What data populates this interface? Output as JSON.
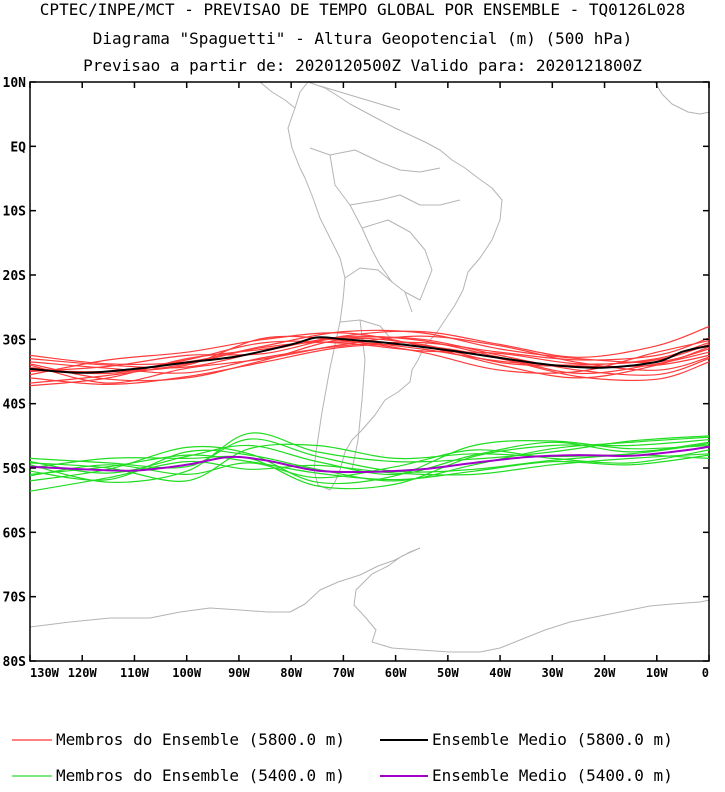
{
  "header": {
    "line1": "CPTEC/INPE/MCT - PREVISAO DE TEMPO GLOBAL POR ENSEMBLE - TQ0126L028",
    "line2": "Diagrama \"Spaguetti\" - Altura Geopotencial (m) (500 hPa)",
    "line3": "Previsao a partir de: 2020120500Z  Valido para: 2020121800Z"
  },
  "axes": {
    "lat_labels": [
      "10N",
      "EQ",
      "10S",
      "20S",
      "30S",
      "40S",
      "50S",
      "60S",
      "70S",
      "80S"
    ],
    "lat_values": [
      10,
      0,
      -10,
      -20,
      -30,
      -40,
      -50,
      -60,
      -70,
      -80
    ],
    "lon_labels": [
      "130W",
      "120W",
      "110W",
      "100W",
      "90W",
      "80W",
      "70W",
      "60W",
      "50W",
      "40W",
      "30W",
      "20W",
      "10W",
      "0"
    ],
    "lon_values": [
      -130,
      -120,
      -110,
      -100,
      -90,
      -80,
      -70,
      -60,
      -50,
      -40,
      -30,
      -20,
      -10,
      0
    ],
    "lon_range": [
      -130,
      0
    ],
    "lat_range": [
      -80,
      10
    ]
  },
  "map_data": {
    "contour_5800": {
      "mean": [
        [
          -130,
          -34.6
        ],
        [
          -120,
          -35.2
        ],
        [
          -110,
          -34.6
        ],
        [
          -100,
          -33.6
        ],
        [
          -90,
          -32.6
        ],
        [
          -80,
          -30.8
        ],
        [
          -75,
          -29.7
        ],
        [
          -70,
          -30.0
        ],
        [
          -65,
          -30.3
        ],
        [
          -60,
          -30.7
        ],
        [
          -50,
          -31.7
        ],
        [
          -40,
          -32.9
        ],
        [
          -30,
          -34.0
        ],
        [
          -20,
          -34.4
        ],
        [
          -10,
          -33.5
        ],
        [
          -5,
          -31.9
        ],
        [
          0,
          -31.0
        ]
      ],
      "members": [
        [
          [
            -130,
            -33.0
          ],
          [
            -115,
            -34.0
          ],
          [
            -100,
            -34.3
          ],
          [
            -85,
            -31.8
          ],
          [
            -70,
            -29.6
          ],
          [
            -55,
            -30.2
          ],
          [
            -40,
            -32.8
          ],
          [
            -25,
            -35.3
          ],
          [
            -10,
            -33.8
          ],
          [
            0,
            -32.0
          ]
        ],
        [
          [
            -130,
            -36.8
          ],
          [
            -115,
            -35.6
          ],
          [
            -100,
            -33.8
          ],
          [
            -85,
            -31.2
          ],
          [
            -70,
            -30.4
          ],
          [
            -55,
            -31.5
          ],
          [
            -40,
            -33.4
          ],
          [
            -25,
            -34.0
          ],
          [
            -10,
            -33.0
          ],
          [
            0,
            -30.5
          ]
        ],
        [
          [
            -130,
            -34.0
          ],
          [
            -115,
            -36.8
          ],
          [
            -100,
            -34.5
          ],
          [
            -85,
            -33.0
          ],
          [
            -70,
            -30.8
          ],
          [
            -55,
            -29.5
          ],
          [
            -40,
            -31.0
          ],
          [
            -25,
            -33.6
          ],
          [
            -10,
            -34.8
          ],
          [
            0,
            -32.8
          ]
        ],
        [
          [
            -130,
            -35.5
          ],
          [
            -115,
            -33.2
          ],
          [
            -100,
            -32.0
          ],
          [
            -85,
            -30.0
          ],
          [
            -70,
            -29.0
          ],
          [
            -55,
            -31.0
          ],
          [
            -40,
            -34.0
          ],
          [
            -25,
            -36.0
          ],
          [
            -10,
            -34.0
          ],
          [
            0,
            -31.2
          ]
        ],
        [
          [
            -130,
            -33.5
          ],
          [
            -115,
            -34.5
          ],
          [
            -100,
            -35.2
          ],
          [
            -85,
            -32.8
          ],
          [
            -70,
            -31.0
          ],
          [
            -55,
            -30.5
          ],
          [
            -40,
            -32.0
          ],
          [
            -25,
            -33.2
          ],
          [
            -10,
            -32.5
          ],
          [
            0,
            -29.8
          ]
        ],
        [
          [
            -130,
            -37.2
          ],
          [
            -115,
            -36.0
          ],
          [
            -100,
            -33.0
          ],
          [
            -85,
            -31.5
          ],
          [
            -70,
            -29.8
          ],
          [
            -55,
            -30.0
          ],
          [
            -40,
            -32.5
          ],
          [
            -25,
            -34.8
          ],
          [
            -10,
            -35.5
          ],
          [
            0,
            -33.0
          ]
        ],
        [
          [
            -130,
            -34.8
          ],
          [
            -115,
            -35.0
          ],
          [
            -100,
            -34.0
          ],
          [
            -85,
            -29.8
          ],
          [
            -70,
            -30.2
          ],
          [
            -55,
            -32.0
          ],
          [
            -40,
            -34.8
          ],
          [
            -25,
            -35.0
          ],
          [
            -10,
            -32.0
          ],
          [
            0,
            -30.2
          ]
        ],
        [
          [
            -130,
            -32.5
          ],
          [
            -115,
            -33.8
          ],
          [
            -100,
            -33.5
          ],
          [
            -85,
            -31.0
          ],
          [
            -70,
            -28.8
          ],
          [
            -55,
            -29.0
          ],
          [
            -40,
            -31.5
          ],
          [
            -25,
            -33.0
          ],
          [
            -10,
            -33.5
          ],
          [
            0,
            -31.5
          ]
        ],
        [
          [
            -130,
            -36.0
          ],
          [
            -115,
            -37.0
          ],
          [
            -100,
            -35.8
          ],
          [
            -85,
            -33.5
          ],
          [
            -70,
            -31.2
          ],
          [
            -55,
            -31.0
          ],
          [
            -40,
            -33.0
          ],
          [
            -25,
            -35.8
          ],
          [
            -10,
            -36.2
          ],
          [
            0,
            -33.5
          ]
        ],
        [
          [
            -130,
            -35.0
          ],
          [
            -115,
            -34.2
          ],
          [
            -100,
            -32.5
          ],
          [
            -85,
            -32.2
          ],
          [
            -70,
            -29.5
          ],
          [
            -55,
            -28.8
          ],
          [
            -40,
            -30.8
          ],
          [
            -25,
            -32.8
          ],
          [
            -10,
            -31.0
          ],
          [
            0,
            -28.0
          ]
        ],
        [
          [
            -130,
            -33.8
          ],
          [
            -115,
            -36.2
          ],
          [
            -100,
            -36.0
          ],
          [
            -85,
            -33.2
          ],
          [
            -70,
            -30.0
          ],
          [
            -55,
            -30.8
          ],
          [
            -40,
            -33.6
          ],
          [
            -25,
            -34.2
          ],
          [
            -10,
            -34.0
          ],
          [
            0,
            -32.5
          ]
        ],
        [
          [
            -130,
            -34.4
          ],
          [
            -115,
            -35.3
          ],
          [
            -100,
            -33.2
          ],
          [
            -85,
            -30.5
          ],
          [
            -70,
            -30.6
          ],
          [
            -55,
            -31.8
          ],
          [
            -40,
            -32.2
          ],
          [
            -25,
            -33.8
          ],
          [
            -10,
            -33.2
          ],
          [
            0,
            -30.8
          ]
        ]
      ]
    },
    "contour_5400": {
      "mean": [
        [
          -130,
          -49.8
        ],
        [
          -120,
          -50.2
        ],
        [
          -110,
          -50.4
        ],
        [
          -100,
          -49.5
        ],
        [
          -92,
          -48.3
        ],
        [
          -85,
          -48.8
        ],
        [
          -75,
          -50.4
        ],
        [
          -65,
          -50.6
        ],
        [
          -55,
          -50.2
        ],
        [
          -45,
          -49.2
        ],
        [
          -35,
          -48.3
        ],
        [
          -25,
          -48.0
        ],
        [
          -15,
          -48.1
        ],
        [
          -5,
          -47.3
        ],
        [
          0,
          -46.7
        ]
      ],
      "members": [
        [
          [
            -130,
            -49.0
          ],
          [
            -115,
            -50.8
          ],
          [
            -100,
            -48.2
          ],
          [
            -88,
            -46.5
          ],
          [
            -75,
            -49.0
          ],
          [
            -60,
            -51.0
          ],
          [
            -45,
            -48.0
          ],
          [
            -30,
            -46.0
          ],
          [
            -15,
            -47.5
          ],
          [
            0,
            -46.0
          ]
        ],
        [
          [
            -130,
            -51.2
          ],
          [
            -115,
            -49.5
          ],
          [
            -100,
            -51.0
          ],
          [
            -88,
            -49.2
          ],
          [
            -75,
            -51.5
          ],
          [
            -60,
            -49.8
          ],
          [
            -45,
            -47.2
          ],
          [
            -30,
            -48.5
          ],
          [
            -15,
            -49.2
          ],
          [
            0,
            -47.2
          ]
        ],
        [
          [
            -130,
            -50.5
          ],
          [
            -115,
            -51.8
          ],
          [
            -100,
            -47.5
          ],
          [
            -88,
            -48.0
          ],
          [
            -75,
            -50.2
          ],
          [
            -60,
            -52.0
          ],
          [
            -45,
            -49.5
          ],
          [
            -30,
            -47.0
          ],
          [
            -15,
            -46.0
          ],
          [
            0,
            -45.2
          ]
        ],
        [
          [
            -130,
            -48.5
          ],
          [
            -115,
            -49.2
          ],
          [
            -100,
            -49.8
          ],
          [
            -88,
            -45.5
          ],
          [
            -75,
            -48.2
          ],
          [
            -60,
            -50.5
          ],
          [
            -45,
            -50.2
          ],
          [
            -30,
            -48.8
          ],
          [
            -15,
            -48.0
          ],
          [
            0,
            -48.5
          ]
        ],
        [
          [
            -130,
            -52.0
          ],
          [
            -115,
            -50.2
          ],
          [
            -100,
            -46.8
          ],
          [
            -88,
            -47.8
          ],
          [
            -75,
            -52.2
          ],
          [
            -60,
            -51.2
          ],
          [
            -45,
            -46.5
          ],
          [
            -30,
            -45.8
          ],
          [
            -15,
            -47.0
          ],
          [
            0,
            -46.5
          ]
        ],
        [
          [
            -130,
            -49.5
          ],
          [
            -115,
            -52.2
          ],
          [
            -100,
            -50.5
          ],
          [
            -88,
            -44.6
          ],
          [
            -75,
            -47.5
          ],
          [
            -60,
            -49.0
          ],
          [
            -45,
            -48.6
          ],
          [
            -30,
            -47.5
          ],
          [
            -15,
            -45.8
          ],
          [
            0,
            -45.0
          ]
        ],
        [
          [
            -130,
            -53.6
          ],
          [
            -115,
            -51.5
          ],
          [
            -100,
            -49.0
          ],
          [
            -88,
            -50.2
          ],
          [
            -75,
            -49.6
          ],
          [
            -60,
            -50.8
          ],
          [
            -45,
            -51.0
          ],
          [
            -30,
            -49.5
          ],
          [
            -15,
            -48.5
          ],
          [
            0,
            -47.8
          ]
        ],
        [
          [
            -130,
            -50.0
          ],
          [
            -115,
            -48.5
          ],
          [
            -100,
            -48.5
          ],
          [
            -88,
            -48.5
          ],
          [
            -75,
            -52.8
          ],
          [
            -60,
            -52.5
          ],
          [
            -45,
            -48.2
          ],
          [
            -30,
            -46.5
          ],
          [
            -15,
            -46.5
          ],
          [
            0,
            -45.6
          ]
        ],
        [
          [
            -130,
            -49.2
          ],
          [
            -115,
            -50.0
          ],
          [
            -100,
            -52.0
          ],
          [
            -88,
            -47.0
          ],
          [
            -75,
            -46.5
          ],
          [
            -60,
            -48.5
          ],
          [
            -45,
            -47.8
          ],
          [
            -30,
            -48.2
          ],
          [
            -15,
            -47.8
          ],
          [
            0,
            -46.2
          ]
        ],
        [
          [
            -130,
            -51.0
          ],
          [
            -115,
            -49.8
          ],
          [
            -100,
            -48.0
          ],
          [
            -88,
            -49.0
          ],
          [
            -75,
            -50.8
          ],
          [
            -60,
            -51.8
          ],
          [
            -45,
            -50.5
          ],
          [
            -30,
            -49.0
          ],
          [
            -15,
            -49.5
          ],
          [
            0,
            -48.0
          ]
        ]
      ]
    }
  },
  "legend": {
    "items": [
      {
        "label": "Membros do Ensemble (5800.0 m)",
        "color": "#ff0000"
      },
      {
        "label": "Ensemble Medio (5800.0 m)",
        "color": "#000000"
      },
      {
        "label": "Membros do Ensemble (5400.0 m)",
        "color": "#00cc00"
      },
      {
        "label": "Ensemble Medio (5400.0 m)",
        "color": "#a000c8"
      }
    ]
  },
  "colors": {
    "red_member": "#ff3b3b",
    "black_mean": "#000000",
    "green_member": "#22dd22",
    "purple_mean": "#a000c8",
    "coast": "#b4b4b4"
  }
}
